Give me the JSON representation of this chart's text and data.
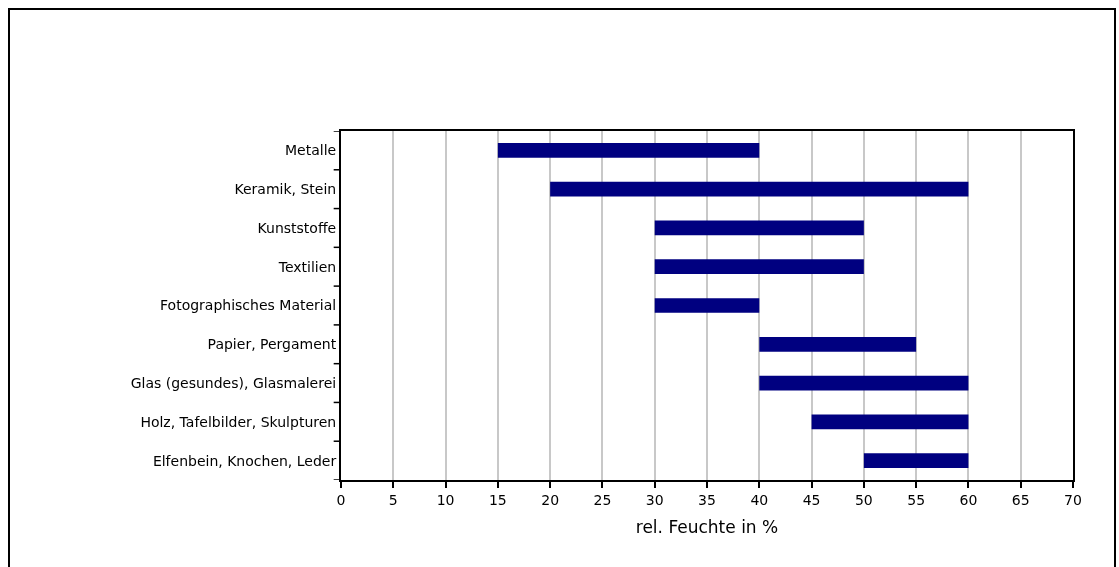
{
  "chart_data": {
    "type": "bar",
    "orientation": "horizontal",
    "xlabel": "rel. Feuchte in %",
    "categories": [
      "Metalle",
      "Keramik, Stein",
      "Kunststoffe",
      "Textilien",
      "Fotographisches Material",
      "Papier, Pergament",
      "Glas (gesundes), Glasmalerei",
      "Holz, Tafelbilder, Skulpturen",
      "Elfenbein, Knochen, Leder"
    ],
    "base": [
      15,
      20,
      30,
      30,
      30,
      40,
      40,
      45,
      50
    ],
    "values": [
      25,
      40,
      20,
      20,
      10,
      15,
      20,
      15,
      10
    ],
    "color": "#000080",
    "xlim": [
      0,
      70
    ],
    "xticks": [
      0,
      5,
      10,
      15,
      20,
      25,
      30,
      35,
      40,
      45,
      50,
      55,
      60,
      65,
      70
    ],
    "grid": "x"
  }
}
